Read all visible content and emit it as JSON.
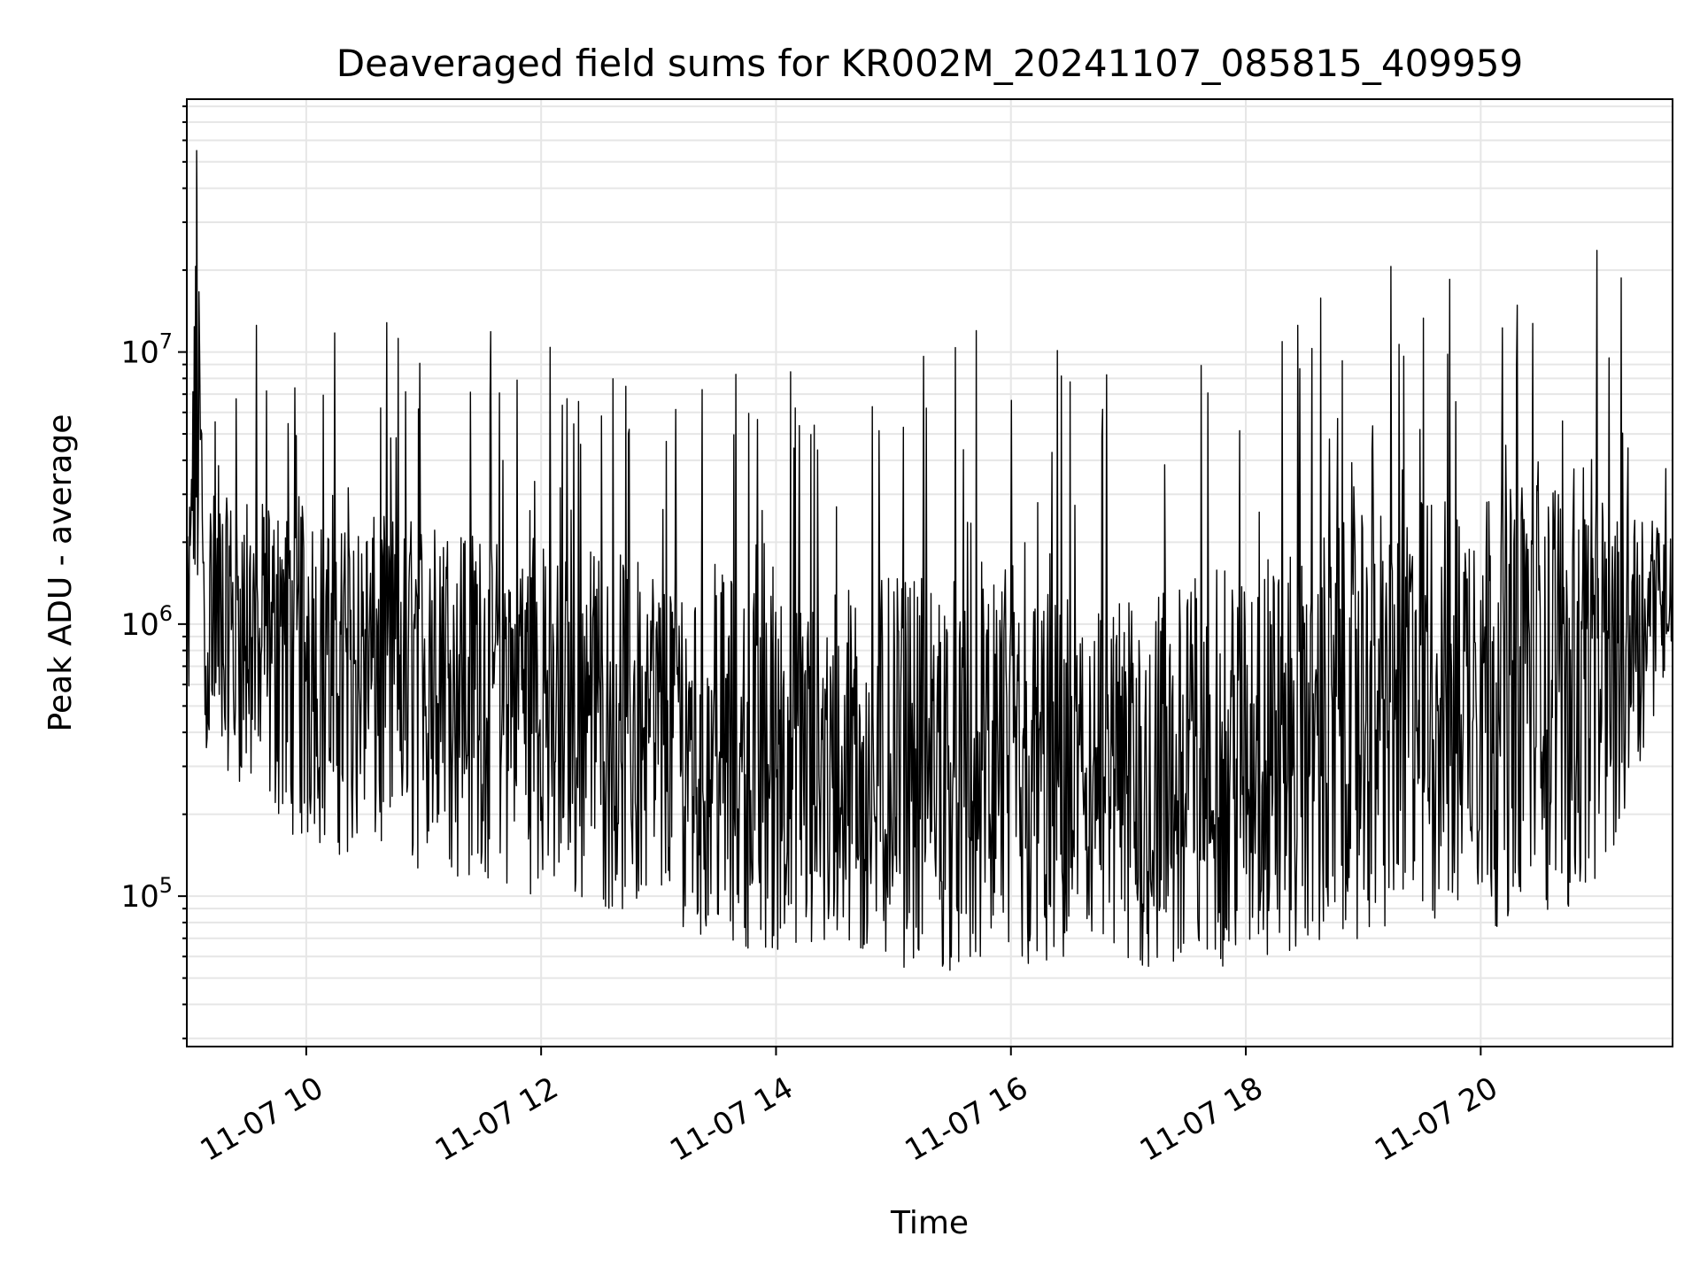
{
  "chart_data": {
    "type": "line",
    "title": "Deaveraged field sums for KR002M_20241107_085815_409959",
    "xlabel": "Time",
    "ylabel": "Peak ADU - average",
    "x_ticks": [
      "11-07 10",
      "11-07 12",
      "11-07 14",
      "11-07 16",
      "11-07 18",
      "11-07 20"
    ],
    "y_ticks": [
      {
        "value": 100000,
        "base": "10",
        "exp": "5"
      },
      {
        "value": 1000000,
        "base": "10",
        "exp": "6"
      },
      {
        "value": 10000000,
        "base": "10",
        "exp": "7"
      }
    ],
    "y_scale": "log",
    "xlim": [
      "2024-11-07 08:59",
      "2024-11-07 21:38"
    ],
    "ylim": [
      28000,
      85000000
    ],
    "grid": true,
    "line_color": "#000000",
    "grid_color": "#e6e6e6",
    "series": [
      {
        "x": [
          "2024-11-07 09:00",
          "2024-11-07 09:04",
          "2024-11-07 09:08",
          "2024-11-07 09:12",
          "2024-11-07 09:20",
          "2024-11-07 09:30",
          "2024-11-07 09:40",
          "2024-11-07 10:00",
          "2024-11-07 10:20",
          "2024-11-07 10:40",
          "2024-11-07 11:00",
          "2024-11-07 11:30",
          "2024-11-07 12:00",
          "2024-11-07 12:30",
          "2024-11-07 13:00",
          "2024-11-07 13:30",
          "2024-11-07 14:00",
          "2024-11-07 14:30",
          "2024-11-07 15:00",
          "2024-11-07 15:30",
          "2024-11-07 16:00",
          "2024-11-07 16:30",
          "2024-11-07 17:00",
          "2024-11-07 17:30",
          "2024-11-07 18:00",
          "2024-11-07 18:30",
          "2024-11-07 19:00",
          "2024-11-07 19:30",
          "2024-11-07 20:00",
          "2024-11-07 20:30",
          "2024-11-07 21:00",
          "2024-11-07 21:15",
          "2024-11-07 21:30",
          "2024-11-07 21:38"
        ],
        "y": [
          600000,
          55000000,
          700000,
          900000,
          800000,
          850000,
          900000,
          800000,
          700000,
          750000,
          650000,
          550000,
          500000,
          450000,
          350000,
          320000,
          280000,
          250000,
          240000,
          230000,
          200000,
          210000,
          220000,
          200000,
          260000,
          350000,
          450000,
          550000,
          600000,
          650000,
          700000,
          1000000,
          1300000,
          1300000
        ]
      }
    ],
    "noise_envelope": {
      "x": [
        "2024-11-07 09:00",
        "2024-11-07 10:00",
        "2024-11-07 11:00",
        "2024-11-07 12:00",
        "2024-11-07 13:00",
        "2024-11-07 14:00",
        "2024-11-07 15:00",
        "2024-11-07 16:00",
        "2024-11-07 17:00",
        "2024-11-07 18:00",
        "2024-11-07 19:00",
        "2024-11-07 20:00",
        "2024-11-07 21:00",
        "2024-11-07 21:38"
      ],
      "low": [
        400000,
        150000,
        120000,
        100000,
        80000,
        60000,
        55000,
        50000,
        50000,
        55000,
        70000,
        75000,
        90000,
        800000
      ],
      "high": [
        8000000,
        5000000,
        6000000,
        5000000,
        5000000,
        4000000,
        5000000,
        5000000,
        4000000,
        6000000,
        8000000,
        10000000,
        12000000,
        3000000
      ]
    }
  }
}
